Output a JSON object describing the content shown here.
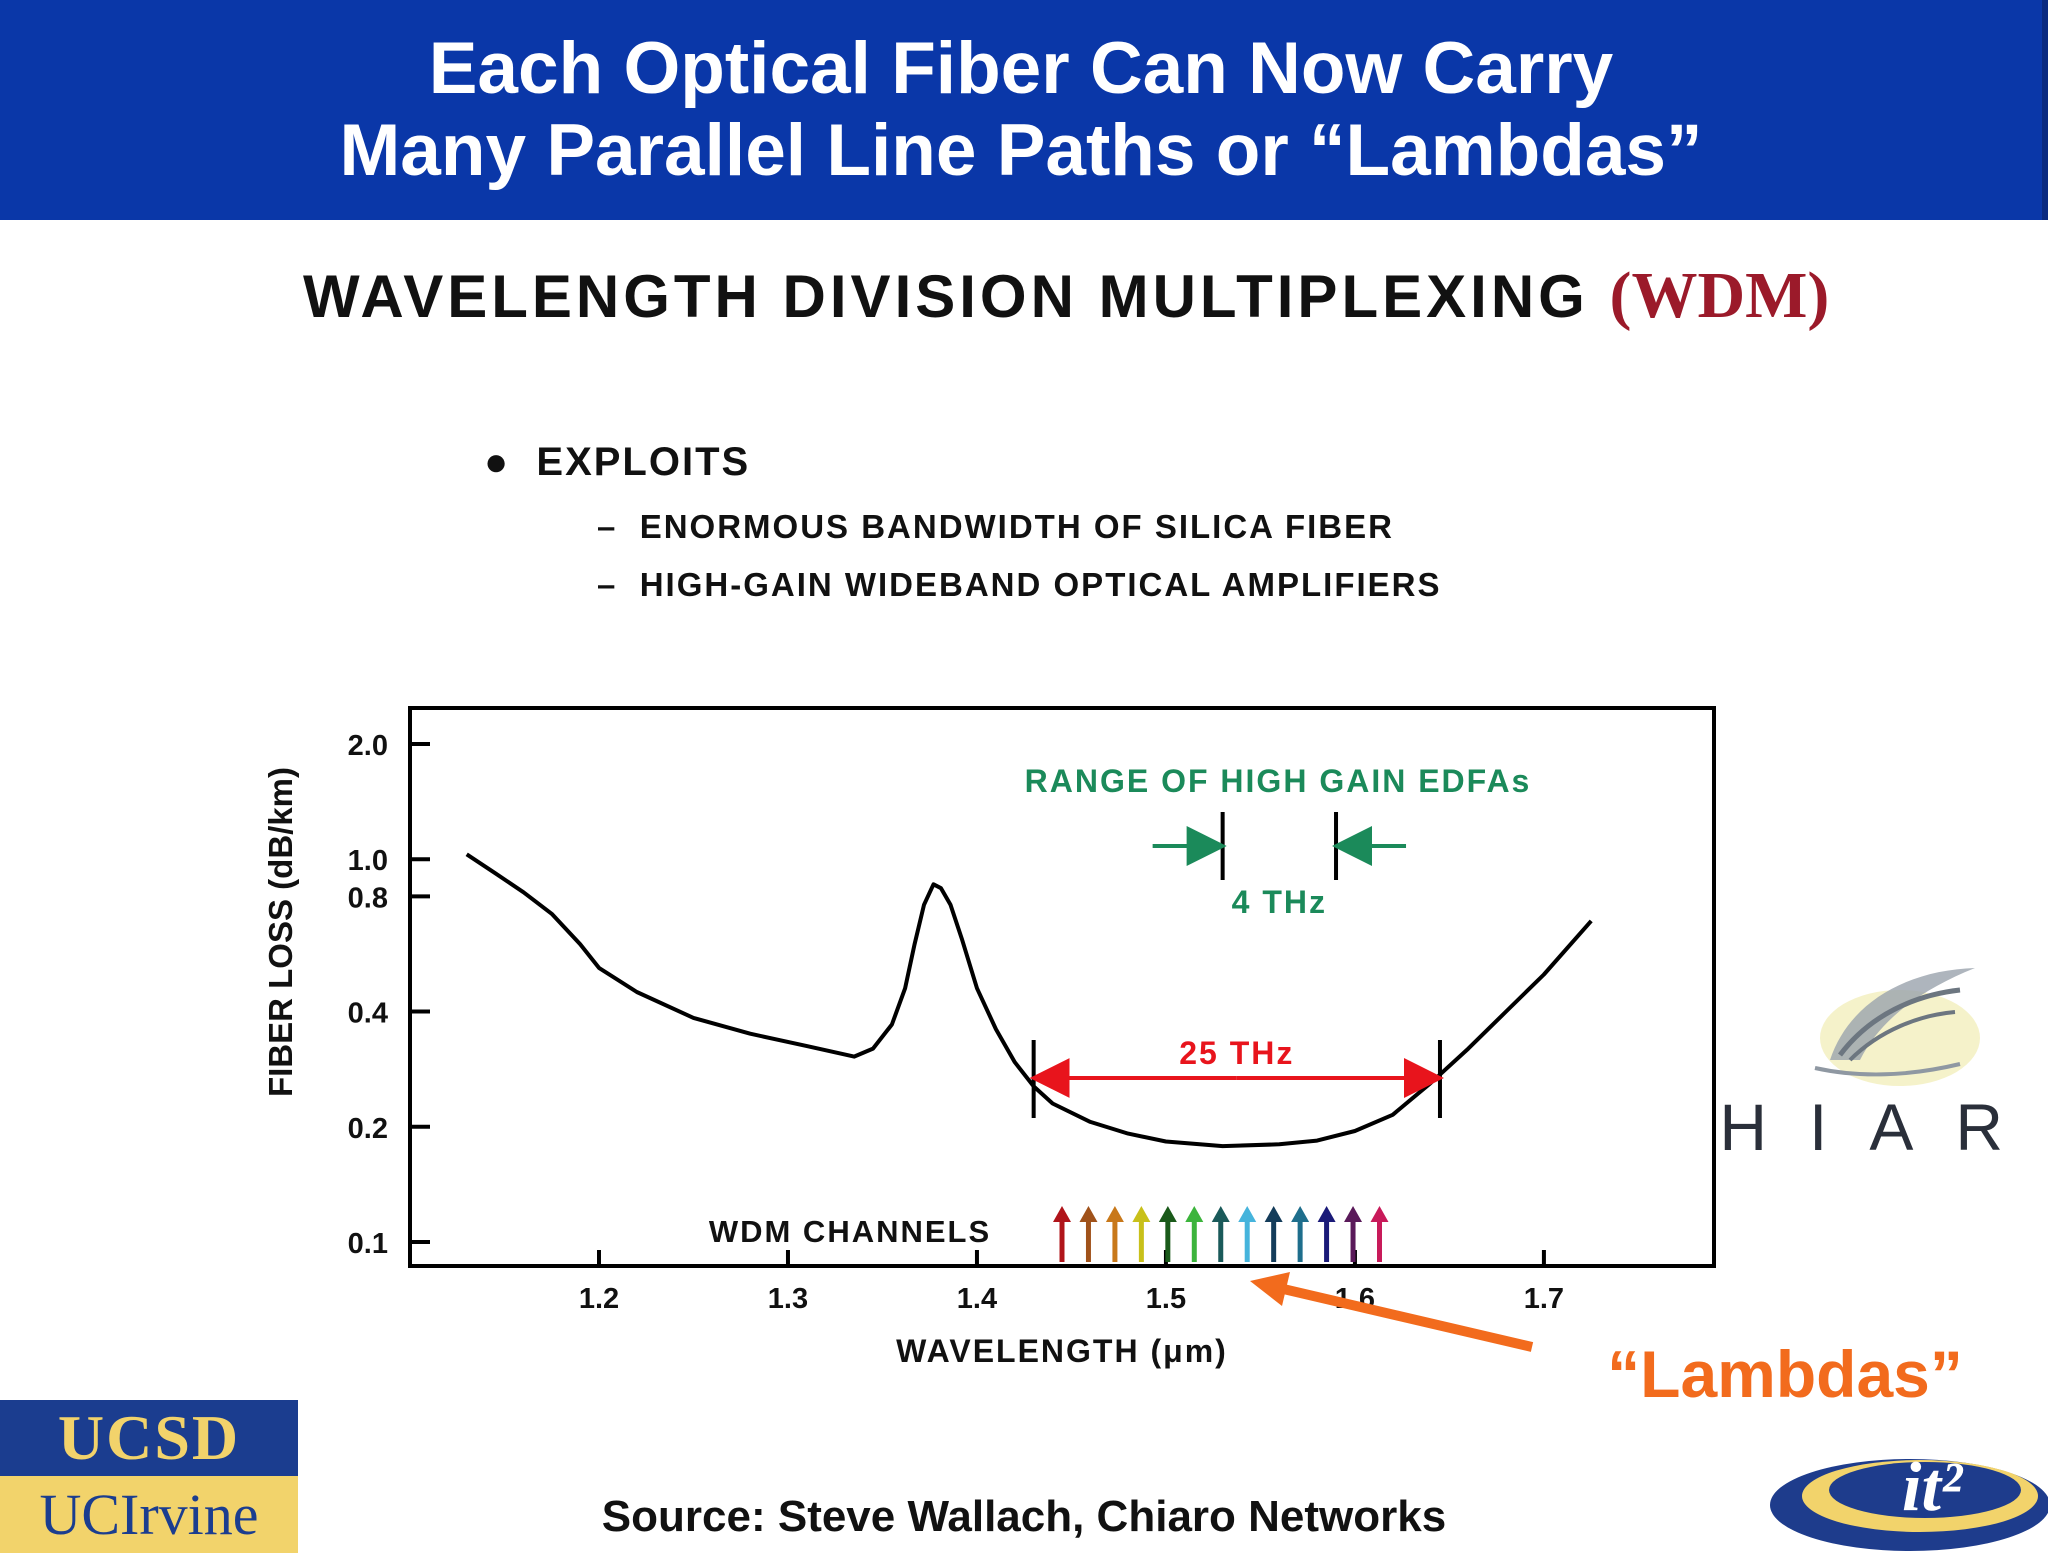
{
  "slide": {
    "title_line1": "Each Optical Fiber Can Now Carry",
    "title_line2": "Many Parallel Line Paths or “Lambdas”",
    "heading_main": "WAVELENGTH DIVISION MULTIPLEXING ",
    "heading_abbr": "(WDM)",
    "exploits": {
      "bullet_label": "EXPLOITS",
      "items": [
        "ENORMOUS BANDWIDTH OF SILICA FIBER",
        "HIGH-GAIN WIDEBAND OPTICAL AMPLIFIERS"
      ]
    },
    "lambdas_callout": "“Lambdas”",
    "source": "Source: Steve Wallach, Chiaro Networks",
    "logos": {
      "ucsd": "UCSD",
      "uci": "UCIrvine",
      "chiaro": "CHIARO",
      "it2": "it²"
    },
    "colors": {
      "title_bar": "#0a37a8",
      "wdm_abbr": "#9b1a2a",
      "annotation_green": "#1b8a5a",
      "annotation_red": "#e8141c",
      "callout_orange": "#f26b1d"
    }
  },
  "chart_data": {
    "type": "line",
    "xlabel": "WAVELENGTH (μm)",
    "ylabel": "FIBER LOSS (dB/km)",
    "xlim": [
      1.1,
      1.79
    ],
    "ylim": [
      0.1,
      2.0
    ],
    "yscale": "log",
    "x_ticks": [
      1.2,
      1.3,
      1.4,
      1.5,
      1.6,
      1.7
    ],
    "x_tick_labels": [
      "1.2",
      "1.3",
      "1.4",
      "1.5",
      "1.6",
      "1.7"
    ],
    "y_ticks": [
      0.1,
      0.2,
      0.4,
      0.8,
      1.0,
      2.0
    ],
    "y_tick_labels": [
      "0.1",
      "0.2",
      "0.4",
      "0.8",
      "1.0",
      "2.0"
    ],
    "grid": false,
    "series": [
      {
        "x": [
          1.13,
          1.145,
          1.16,
          1.175,
          1.19,
          1.2,
          1.22,
          1.25,
          1.28,
          1.31,
          1.335,
          1.345,
          1.355,
          1.362,
          1.367,
          1.372,
          1.377,
          1.381,
          1.386,
          1.392,
          1.4,
          1.41,
          1.42,
          1.43,
          1.44,
          1.46,
          1.48,
          1.5,
          1.53,
          1.56,
          1.58,
          1.6,
          1.62,
          1.64,
          1.66,
          1.68,
          1.7,
          1.725
        ],
        "y": [
          1.03,
          0.92,
          0.82,
          0.72,
          0.6,
          0.52,
          0.45,
          0.385,
          0.35,
          0.325,
          0.305,
          0.32,
          0.37,
          0.46,
          0.6,
          0.76,
          0.86,
          0.84,
          0.76,
          0.62,
          0.46,
          0.36,
          0.295,
          0.255,
          0.23,
          0.206,
          0.192,
          0.183,
          0.178,
          0.18,
          0.184,
          0.195,
          0.215,
          0.26,
          0.32,
          0.4,
          0.5,
          0.69
        ]
      }
    ],
    "annotations": {
      "edfa_label": "RANGE OF HIGH GAIN EDFAs",
      "edfa_bandwidth": "4 THz",
      "edfa_range": [
        1.53,
        1.59
      ],
      "window_bandwidth": "25 THz",
      "window_range": [
        1.43,
        1.645
      ],
      "channels_label": "WDM CHANNELS",
      "channels": [
        {
          "x": 1.445,
          "color": "#b0141a"
        },
        {
          "x": 1.459,
          "color": "#a0521a"
        },
        {
          "x": 1.473,
          "color": "#c8781a"
        },
        {
          "x": 1.487,
          "color": "#c8c01a"
        },
        {
          "x": 1.501,
          "color": "#1a5a1a"
        },
        {
          "x": 1.515,
          "color": "#3cb43c"
        },
        {
          "x": 1.529,
          "color": "#1a5a5a"
        },
        {
          "x": 1.543,
          "color": "#46b4dc"
        },
        {
          "x": 1.557,
          "color": "#143c5a"
        },
        {
          "x": 1.571,
          "color": "#1e6e8c"
        },
        {
          "x": 1.585,
          "color": "#1a1a78"
        },
        {
          "x": 1.599,
          "color": "#5a1a5a"
        },
        {
          "x": 1.613,
          "color": "#c81a5a"
        }
      ]
    }
  }
}
